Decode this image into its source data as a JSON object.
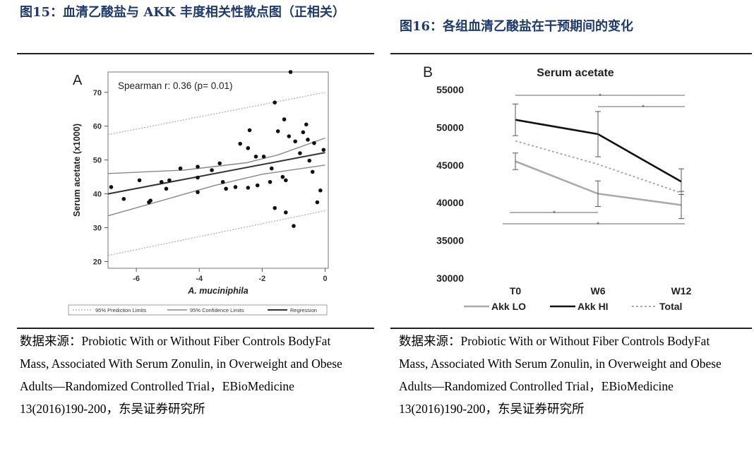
{
  "left_panel": {
    "caption": "图15：血清乙酸盐与 AKK 丰度相关性散点图（正相关）",
    "source": "数据来源：Probiotic With or Without Fiber Controls BodyFat Mass, Associated With Serum Zonulin, in Overweight and Obese Adults—Randomized Controlled Trial，EBioMedicine 13(2016)190-200，东吴证券研究所"
  },
  "right_panel": {
    "caption": "图16：各组血清乙酸盐在干预期间的变化",
    "source": "数据来源：Probiotic With or Without Fiber Controls BodyFat Mass, Associated With Serum Zonulin, in Overweight and Obese Adults—Randomized Controlled Trial，EBioMedicine 13(2016)190-200，东吴证券研究所"
  },
  "chart_data": [
    {
      "type": "scatter",
      "panel_label": "A",
      "annotation": "Spearman r: 0.36 (p= 0.01)",
      "xlabel": "A. muciniphila",
      "ylabel": "Serum acetate (x1000)",
      "xlim": [
        -6.9,
        0.1
      ],
      "ylim": [
        18,
        76
      ],
      "xticks": [
        -6,
        -4,
        -2,
        0
      ],
      "yticks": [
        20,
        30,
        40,
        50,
        60,
        70
      ],
      "points": [
        [
          -6.8,
          42
        ],
        [
          -6.4,
          38.5
        ],
        [
          -5.9,
          44
        ],
        [
          -5.6,
          37.5
        ],
        [
          -5.55,
          38
        ],
        [
          -5.2,
          43.5
        ],
        [
          -5.05,
          41.5
        ],
        [
          -4.95,
          44
        ],
        [
          -4.6,
          47.5
        ],
        [
          -4.05,
          40.5
        ],
        [
          -4.05,
          44.8
        ],
        [
          -4.05,
          48
        ],
        [
          -3.6,
          47
        ],
        [
          -3.35,
          49
        ],
        [
          -3.25,
          43.5
        ],
        [
          -3.15,
          41.5
        ],
        [
          -2.85,
          42
        ],
        [
          -2.7,
          54.8
        ],
        [
          -2.45,
          53.5
        ],
        [
          -2.45,
          41.8
        ],
        [
          -2.4,
          58.8
        ],
        [
          -2.2,
          51
        ],
        [
          -2.15,
          42.5
        ],
        [
          -1.95,
          51
        ],
        [
          -1.75,
          43.5
        ],
        [
          -1.7,
          47.5
        ],
        [
          -1.6,
          35.8
        ],
        [
          -1.6,
          67
        ],
        [
          -1.5,
          58.5
        ],
        [
          -1.35,
          45
        ],
        [
          -1.3,
          62
        ],
        [
          -1.25,
          34.5
        ],
        [
          -1.25,
          44
        ],
        [
          -1.15,
          57
        ],
        [
          -1.1,
          76
        ],
        [
          -1.0,
          30.5
        ],
        [
          -0.95,
          55.5
        ],
        [
          -0.8,
          52
        ],
        [
          -0.7,
          58.2
        ],
        [
          -0.6,
          60.5
        ],
        [
          -0.55,
          56
        ],
        [
          -0.5,
          49.8
        ],
        [
          -0.4,
          46.5
        ],
        [
          -0.35,
          55
        ],
        [
          -0.25,
          37.5
        ],
        [
          -0.15,
          41
        ],
        [
          -0.05,
          53
        ]
      ],
      "regression_line": [
        [
          -6.9,
          40
        ],
        [
          0,
          52.2
        ]
      ],
      "confidence_upper": [
        [
          -6.9,
          46
        ],
        [
          -4.5,
          47
        ],
        [
          -2.5,
          49.2
        ],
        [
          -1.5,
          51.5
        ],
        [
          0,
          56.5
        ]
      ],
      "confidence_lower": [
        [
          -6.9,
          33.5
        ],
        [
          -5,
          38.5
        ],
        [
          -3.5,
          42.5
        ],
        [
          -2,
          45.8
        ],
        [
          0,
          48.5
        ]
      ],
      "prediction_upper": [
        [
          -6.9,
          57.5
        ],
        [
          0,
          70
        ]
      ],
      "prediction_lower": [
        [
          -6.9,
          21.8
        ],
        [
          0,
          35
        ]
      ],
      "legend": [
        "95% Prediction Limits",
        "95% Confidence Limits",
        "Regression"
      ]
    },
    {
      "type": "line",
      "panel_label": "B",
      "title": "Serum acetate",
      "categories": [
        "T0",
        "W6",
        "W12"
      ],
      "ylim": [
        30000,
        55000
      ],
      "yticks": [
        55000,
        50000,
        45000,
        40000,
        35000,
        30000
      ],
      "series": [
        {
          "name": "Akk LO",
          "values": [
            45500,
            41200,
            39700
          ],
          "error": [
            1100,
            1700,
            1800
          ],
          "color": "#aaaaaa",
          "style": "solid"
        },
        {
          "name": "Akk HI",
          "values": [
            51000,
            49100,
            42800
          ],
          "error": [
            2100,
            3000,
            1700
          ],
          "color": "#111111",
          "style": "solid"
        },
        {
          "name": "Total",
          "values": [
            48200,
            45100,
            41300
          ],
          "error": [
            0,
            0,
            0
          ],
          "color": "#aaaaaa",
          "style": "dotted"
        }
      ],
      "significance_marks": [
        "*",
        "*",
        "*",
        "*"
      ]
    }
  ]
}
